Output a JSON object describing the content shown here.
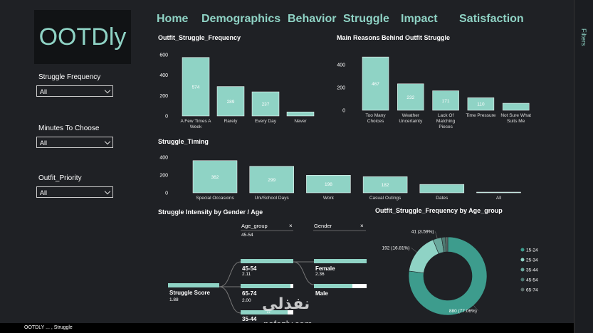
{
  "logo": "OOTDly",
  "nav": [
    "Home",
    "Demographics",
    "Behavior",
    "Struggle",
    "Impact",
    "Satisfaction"
  ],
  "filters": [
    {
      "label": "Struggle Frequency",
      "value": "All"
    },
    {
      "label": "Minutes To Choose",
      "value": "All"
    },
    {
      "label": "Outfit_Priority",
      "value": "All"
    }
  ],
  "side_panel": "Filters",
  "chart_data": [
    {
      "type": "bar",
      "title": "Outfit_Struggle_Frequency",
      "categories": [
        "A Few Times A Week",
        "Rarely",
        "Every Day",
        "Never"
      ],
      "values": [
        574,
        289,
        237,
        40
      ],
      "color": "#8fd3c5",
      "ylim": [
        0,
        600
      ],
      "yticks": [
        0,
        200,
        400,
        600
      ]
    },
    {
      "type": "bar",
      "title": "Main Reasons Behind Outfit Struggle",
      "categories": [
        "Too Many Choices",
        "Weather Uncertainty",
        "Lack Of Matching Pieces",
        "Time Pressure",
        "Not Sure What Suits Me"
      ],
      "values": [
        467,
        232,
        171,
        110,
        62
      ],
      "color": "#8fd3c5",
      "ylim": [
        0,
        480
      ],
      "yticks": [
        0,
        200,
        400
      ]
    },
    {
      "type": "bar",
      "title": "Struggle_Timing",
      "categories": [
        "Special Occasions",
        "Uni/School Days",
        "Work",
        "Casual Outings",
        "Dates",
        "All"
      ],
      "values": [
        362,
        299,
        198,
        182,
        95,
        0
      ],
      "color": "#8fd3c5",
      "ylim": [
        0,
        400
      ],
      "yticks": [
        0,
        200,
        400
      ]
    },
    {
      "type": "pie",
      "title": "Outfit_Struggle_Frequency by Age_group",
      "categories": [
        "15-24",
        "25-34",
        "35-44",
        "45-54",
        "65-74"
      ],
      "values": [
        880,
        192,
        41,
        18,
        11
      ],
      "value_labels": [
        "880 (77.06%)",
        "192 (16.81%)",
        "41 (3.59%)",
        null,
        null
      ],
      "colors": [
        "#3d9c8d",
        "#8fd3c5",
        "#6aa89d",
        "#4f7a73",
        "#5d6e6b"
      ]
    }
  ],
  "tree": {
    "title": "Struggle Intensity by Gender / Age",
    "levels": [
      {
        "name": "Age_group",
        "selected": "45-54"
      },
      {
        "name": "Gender"
      }
    ],
    "root": {
      "label": "Struggle Score",
      "value": "1.88"
    },
    "age_nodes": [
      {
        "label": "45-54",
        "value": "2.11"
      },
      {
        "label": "65-74",
        "value": "2.00"
      },
      {
        "label": "35-44"
      }
    ],
    "gender_nodes": [
      {
        "label": "Female",
        "value": "2.36"
      },
      {
        "label": "Male"
      }
    ]
  },
  "footer": "OOTDLY ... , Struggle",
  "watermark": [
    "نفذلي",
    "nafezly.com"
  ]
}
